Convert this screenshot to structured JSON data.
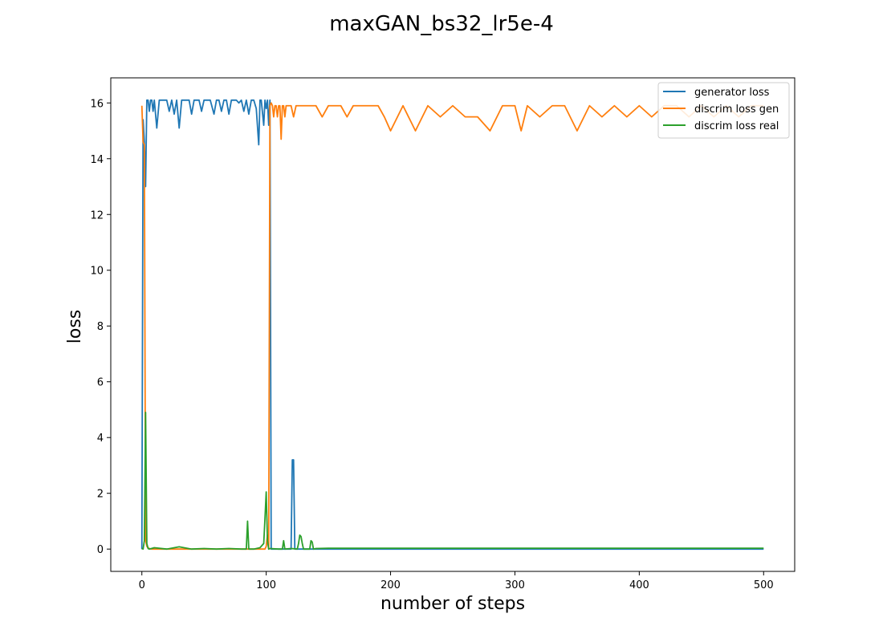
{
  "chart_data": {
    "type": "line",
    "title": "maxGAN_bs32_lr5e-4",
    "xlabel": "number of steps",
    "ylabel": "loss",
    "xlim": [
      -25,
      525
    ],
    "ylim": [
      -0.8,
      16.9
    ],
    "xticks": [
      0,
      100,
      200,
      300,
      400,
      500
    ],
    "yticks": [
      0,
      2,
      4,
      6,
      8,
      10,
      12,
      14,
      16
    ],
    "grid": false,
    "legend_position": "upper right",
    "series": [
      {
        "name": "generator loss",
        "color": "#1f77b4",
        "x": [
          0,
          1,
          2,
          3,
          4,
          5,
          6,
          7,
          8,
          9,
          10,
          12,
          14,
          16,
          18,
          20,
          22,
          24,
          26,
          28,
          30,
          32,
          34,
          36,
          38,
          40,
          42,
          44,
          46,
          48,
          50,
          52,
          55,
          58,
          60,
          62,
          64,
          66,
          68,
          70,
          72,
          74,
          76,
          78,
          80,
          82,
          84,
          86,
          88,
          90,
          92,
          94,
          95,
          96,
          98,
          99,
          100,
          101,
          102,
          103,
          104,
          105,
          120,
          121,
          122,
          123,
          124,
          140,
          200,
          300,
          400,
          500
        ],
        "y": [
          0.0,
          15.4,
          14.6,
          13.0,
          16.1,
          16.1,
          15.7,
          16.1,
          16.1,
          15.7,
          16.1,
          15.1,
          16.1,
          16.1,
          16.1,
          16.1,
          15.7,
          16.1,
          15.6,
          16.1,
          15.1,
          16.1,
          16.1,
          16.1,
          16.1,
          15.6,
          16.1,
          16.1,
          16.1,
          15.7,
          16.1,
          16.1,
          16.1,
          15.6,
          16.1,
          16.1,
          15.7,
          16.1,
          16.1,
          15.6,
          16.1,
          16.1,
          16.1,
          16.0,
          16.1,
          15.7,
          16.1,
          15.6,
          16.1,
          16.1,
          15.8,
          14.5,
          16.1,
          16.1,
          15.2,
          16.1,
          15.8,
          16.1,
          15.2,
          16.1,
          0.0,
          0.0,
          0.0,
          3.2,
          3.2,
          0.0,
          0.0,
          0.0,
          0.0,
          0.0,
          0.0,
          0.0
        ]
      },
      {
        "name": "discrim loss gen",
        "color": "#ff7f0e",
        "x": [
          0,
          1,
          2,
          3,
          4,
          5,
          6,
          8,
          10,
          20,
          40,
          60,
          80,
          99,
          100,
          101,
          102,
          103,
          104,
          105,
          106,
          107,
          108,
          109,
          110,
          111,
          112,
          113,
          114,
          115,
          116,
          117,
          118,
          120,
          122,
          124,
          126,
          128,
          130,
          140,
          145,
          150,
          160,
          165,
          170,
          180,
          190,
          195,
          200,
          210,
          220,
          230,
          240,
          250,
          260,
          270,
          280,
          290,
          300,
          305,
          310,
          320,
          330,
          340,
          350,
          360,
          370,
          380,
          390,
          400,
          410,
          420,
          430,
          440,
          450,
          460,
          470,
          480,
          490,
          500
        ],
        "y": [
          15.9,
          14.6,
          14.5,
          0.3,
          0.1,
          0.05,
          0.02,
          0.0,
          0.0,
          0.0,
          0.0,
          0.0,
          0.0,
          0.0,
          0.1,
          0.5,
          0.0,
          15.9,
          16.0,
          15.9,
          15.5,
          15.9,
          15.9,
          15.5,
          15.9,
          15.9,
          14.7,
          15.9,
          15.9,
          15.5,
          15.9,
          15.9,
          15.9,
          15.9,
          15.5,
          15.9,
          15.9,
          15.9,
          15.9,
          15.9,
          15.5,
          15.9,
          15.9,
          15.5,
          15.9,
          15.9,
          15.9,
          15.5,
          15.0,
          15.9,
          15.0,
          15.9,
          15.5,
          15.9,
          15.5,
          15.5,
          15.0,
          15.9,
          15.9,
          15.0,
          15.9,
          15.5,
          15.9,
          15.9,
          15.0,
          15.9,
          15.5,
          15.9,
          15.5,
          15.9,
          15.5,
          15.9,
          15.9,
          15.5,
          15.9,
          15.5,
          15.9,
          15.5,
          15.9,
          15.9
        ]
      },
      {
        "name": "discrim loss real",
        "color": "#2ca02c",
        "x": [
          0,
          1,
          2,
          3,
          4,
          5,
          6,
          10,
          20,
          30,
          40,
          50,
          60,
          70,
          80,
          84,
          85,
          86,
          90,
          95,
          98,
          99,
          100,
          101,
          102,
          103,
          110,
          113,
          114,
          115,
          120,
          125,
          126,
          127,
          128,
          129,
          130,
          135,
          136,
          137,
          138,
          140,
          150,
          200,
          250,
          300,
          350,
          400,
          450,
          500
        ],
        "y": [
          0.02,
          0.0,
          0.3,
          4.9,
          0.2,
          0.02,
          0.0,
          0.05,
          0.0,
          0.08,
          0.0,
          0.02,
          0.0,
          0.02,
          0.0,
          0.0,
          1.0,
          0.0,
          0.0,
          0.05,
          0.2,
          1.1,
          2.05,
          0.3,
          0.0,
          0.02,
          0.0,
          0.0,
          0.3,
          0.0,
          0.02,
          0.0,
          0.2,
          0.5,
          0.45,
          0.2,
          0.0,
          0.0,
          0.3,
          0.25,
          0.0,
          0.02,
          0.03,
          0.03,
          0.03,
          0.03,
          0.03,
          0.03,
          0.03,
          0.03
        ]
      }
    ]
  }
}
